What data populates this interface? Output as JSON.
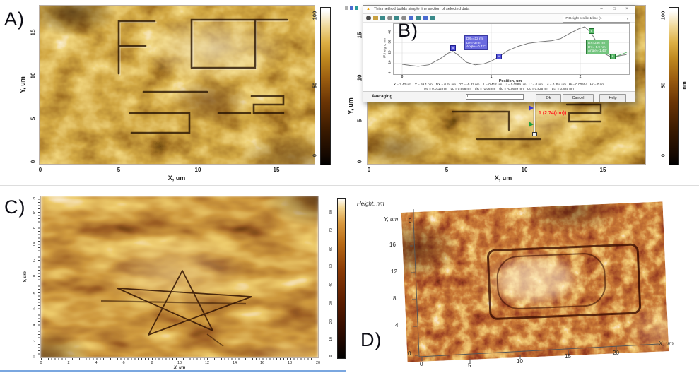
{
  "icons": {
    "warning": "▲",
    "minimize": "–",
    "maximize": "□",
    "close": "×",
    "caret": "∨"
  },
  "panel_a": {
    "label": "A)",
    "ylabel": "Y, um",
    "xlabel": "X, um",
    "yticks": [
      "15",
      "10",
      "5",
      "0"
    ],
    "xticks": [
      "0",
      "5",
      "10",
      "15"
    ],
    "colorbar_ticks": [
      "100",
      "50",
      "0"
    ]
  },
  "panel_b": {
    "label": "B)",
    "ylabel": "Y, um",
    "xlabel": "X, um",
    "yticks": [
      "15",
      "10",
      "5",
      "0"
    ],
    "xticks": [
      "0",
      "5",
      "10",
      "15"
    ],
    "colorbar_ticks": [
      "100",
      "50",
      "0"
    ],
    "colorbar_unit": "nm",
    "section_label": "1 (2.74(um))",
    "dialog": {
      "title": "This method builds simple line section of selected data",
      "profile_selector": "IP:Height profile 1 line (1",
      "plot": {
        "ylabel": "IP:Height, nm",
        "xlabel": "Position, um",
        "yticks": [
          "40",
          "30",
          "20",
          "10",
          "0"
        ],
        "xticks": [
          "0",
          "1",
          "2"
        ],
        "marker_a": "A",
        "marker_b": "B",
        "annotation_a": {
          "line1": "DX=412 nm",
          "line2": "DY=-3 nm",
          "line3": "Angle=-0.42°"
        },
        "annotation_b": {
          "line1": "DX=236 nm",
          "line2": "DY=-5.9 nm",
          "line3": "Angle=-1.43°"
        }
      },
      "status_line1": "X = 2.42 um    Y = 59.1 nm    DX = 0.24 um   DY = -5.87 nm    L = 0.412 um   U = 0.0589 um   Lr = 0 um   Lc = 0.354 um   Hi = 0.00504   Hr = 0 nm",
      "status_line2": "Hc = 0.0112 nm    dL = 0.698 nm    dR = -1.06 nm    dC = -0.0589 nm    Uc = 0.825 nm    Lcr = 0.825 nm",
      "averaging_label": "Averaging",
      "averaging_value": "0",
      "ok_button": "Ok",
      "cancel_button": "Cancel",
      "help_button": "Help"
    }
  },
  "panel_c": {
    "label": "C)",
    "ylabel": "Y, um",
    "xlabel": "X, um",
    "xticks": [
      "0",
      "2",
      "4",
      "6",
      "8",
      "10",
      "12",
      "14",
      "16",
      "18",
      "20"
    ],
    "yticks": [
      "20",
      "18",
      "16",
      "14",
      "12",
      "10",
      "8",
      "6",
      "4",
      "2",
      "0"
    ],
    "colorbar_ticks": [
      "80",
      "70",
      "60",
      "50",
      "40",
      "30",
      "20",
      "10",
      "0"
    ]
  },
  "panel_d": {
    "label": "D)",
    "height_label": "Height, nm",
    "height_tick": "0",
    "ylabel": "Y, um",
    "yticks": [
      "16",
      "12",
      "8",
      "4",
      "0"
    ],
    "xlabel": "X, um",
    "xticks": [
      "0",
      "5",
      "10",
      "15",
      "20"
    ]
  },
  "chart_data": {
    "type": "line",
    "title": "IP:Height profile 1 line (1)",
    "xlabel": "Position, um",
    "ylabel": "IP:Height, nm",
    "x_range": [
      0,
      2.55
    ],
    "y_range": [
      0,
      48
    ],
    "legend": [],
    "points": [
      [
        0,
        9
      ],
      [
        0.08,
        8
      ],
      [
        0.18,
        7
      ],
      [
        0.3,
        8.5
      ],
      [
        0.42,
        14
      ],
      [
        0.52,
        20
      ],
      [
        0.57,
        21.5
      ],
      [
        0.63,
        18
      ],
      [
        0.72,
        11
      ],
      [
        0.82,
        8.5
      ],
      [
        0.92,
        9.5
      ],
      [
        1.0,
        12
      ],
      [
        1.08,
        16
      ],
      [
        1.18,
        22
      ],
      [
        1.3,
        26.5
      ],
      [
        1.42,
        29.5
      ],
      [
        1.55,
        31
      ],
      [
        1.68,
        32
      ],
      [
        1.78,
        34
      ],
      [
        1.88,
        39
      ],
      [
        1.98,
        43.5
      ],
      [
        2.05,
        45.5
      ],
      [
        2.12,
        40
      ],
      [
        2.2,
        28
      ],
      [
        2.28,
        19
      ],
      [
        2.36,
        15.5
      ],
      [
        2.45,
        17.5
      ],
      [
        2.52,
        18.5
      ]
    ]
  }
}
